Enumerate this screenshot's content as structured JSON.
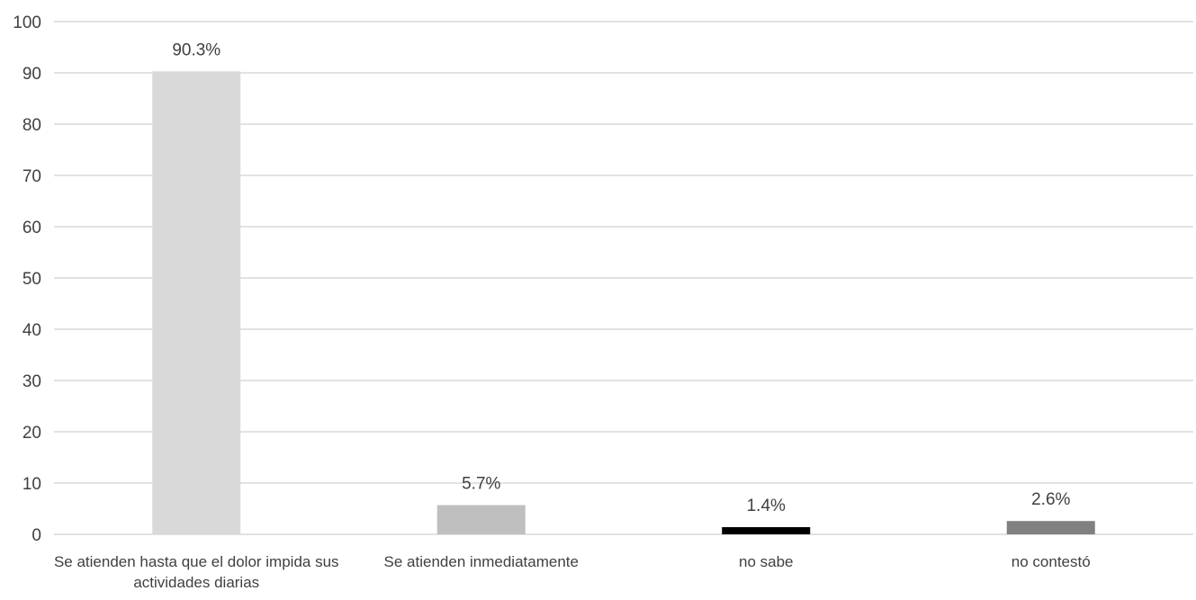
{
  "chart_data": {
    "type": "bar",
    "title": "",
    "xlabel": "",
    "ylabel": "",
    "ylim": [
      0,
      100
    ],
    "yticks": [
      0,
      10,
      20,
      30,
      40,
      50,
      60,
      70,
      80,
      90,
      100
    ],
    "grid": true,
    "legend": "none",
    "categories": [
      [
        "Se atienden hasta que el dolor impida sus",
        "actividades diarias"
      ],
      [
        "Se atienden inmediatamente"
      ],
      [
        "no sabe"
      ],
      [
        "no contestó"
      ]
    ],
    "values": [
      90.3,
      5.7,
      1.4,
      2.6
    ],
    "data_labels": [
      "90.3%",
      "5.7%",
      "1.4%",
      "2.6%"
    ],
    "bar_colors": [
      "#d9d9d9",
      "#bfbfbf",
      "#000000",
      "#808080"
    ],
    "gridline_color": "#d9d9d9",
    "text_color": "#404040"
  }
}
